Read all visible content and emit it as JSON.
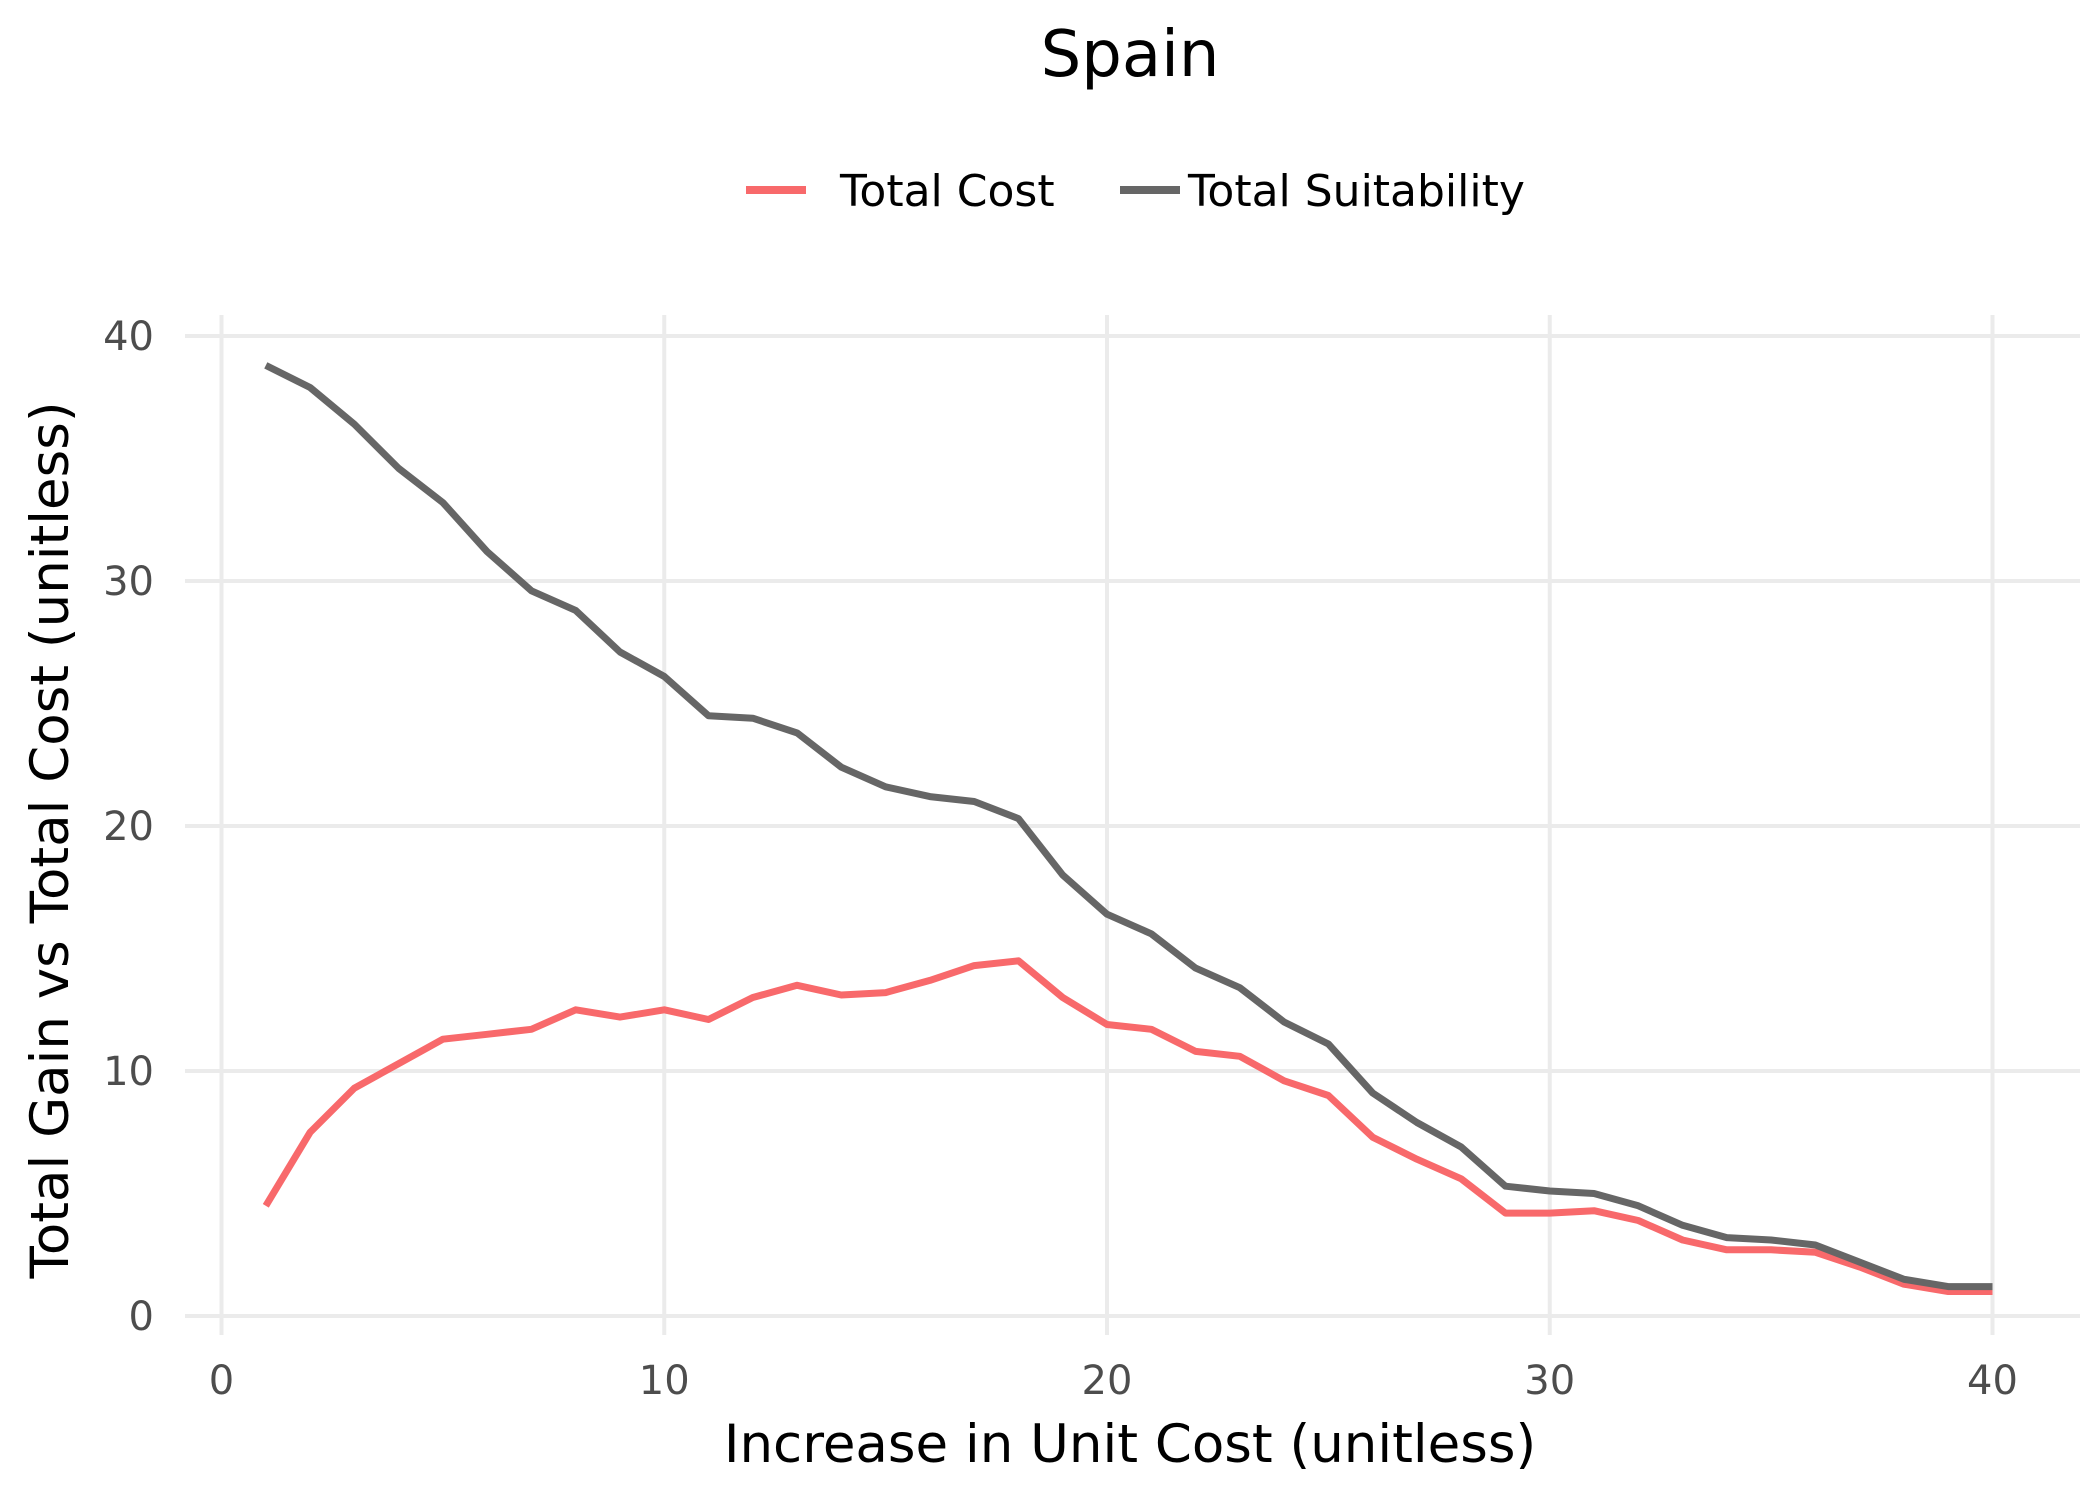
{
  "chart_data": {
    "type": "line",
    "title": "Spain",
    "xlabel": "Increase in Unit Cost (unitless)",
    "ylabel": "Total Gain vs Total Cost (unitless)",
    "xlim": [
      0,
      40
    ],
    "ylim": [
      0,
      40
    ],
    "xticks": [
      0,
      10,
      20,
      30,
      40
    ],
    "yticks": [
      0,
      10,
      20,
      30,
      40
    ],
    "grid": true,
    "legend_position": "top-center",
    "x": [
      1,
      2,
      3,
      4,
      5,
      6,
      7,
      8,
      9,
      10,
      11,
      12,
      13,
      14,
      15,
      16,
      17,
      18,
      19,
      20,
      21,
      22,
      23,
      24,
      25,
      26,
      27,
      28,
      29,
      30,
      31,
      32,
      33,
      34,
      35,
      36,
      37,
      38,
      39,
      40
    ],
    "series": [
      {
        "name": "Total Cost",
        "color": "#f8696b",
        "values": [
          4.5,
          7.5,
          9.3,
          10.3,
          11.3,
          11.5,
          11.7,
          12.5,
          12.2,
          12.5,
          12.1,
          13.0,
          13.5,
          13.1,
          13.2,
          13.7,
          14.3,
          14.5,
          13.0,
          11.9,
          11.7,
          10.8,
          10.6,
          9.6,
          9.0,
          7.3,
          6.4,
          5.6,
          4.2,
          4.2,
          4.3,
          3.9,
          3.1,
          2.7,
          2.7,
          2.6,
          2.0,
          1.3,
          1.0,
          1.0
        ]
      },
      {
        "name": "Total Suitability",
        "color": "#666666",
        "values": [
          38.8,
          37.9,
          36.4,
          34.6,
          33.2,
          31.2,
          29.6,
          28.8,
          27.1,
          26.1,
          24.5,
          24.4,
          23.8,
          22.4,
          21.6,
          21.2,
          21.0,
          20.3,
          18.0,
          16.4,
          15.6,
          14.2,
          13.4,
          12.0,
          11.1,
          9.1,
          7.9,
          6.9,
          5.3,
          5.1,
          5.0,
          4.5,
          3.7,
          3.2,
          3.1,
          2.9,
          2.2,
          1.5,
          1.2,
          1.2
        ]
      }
    ]
  }
}
